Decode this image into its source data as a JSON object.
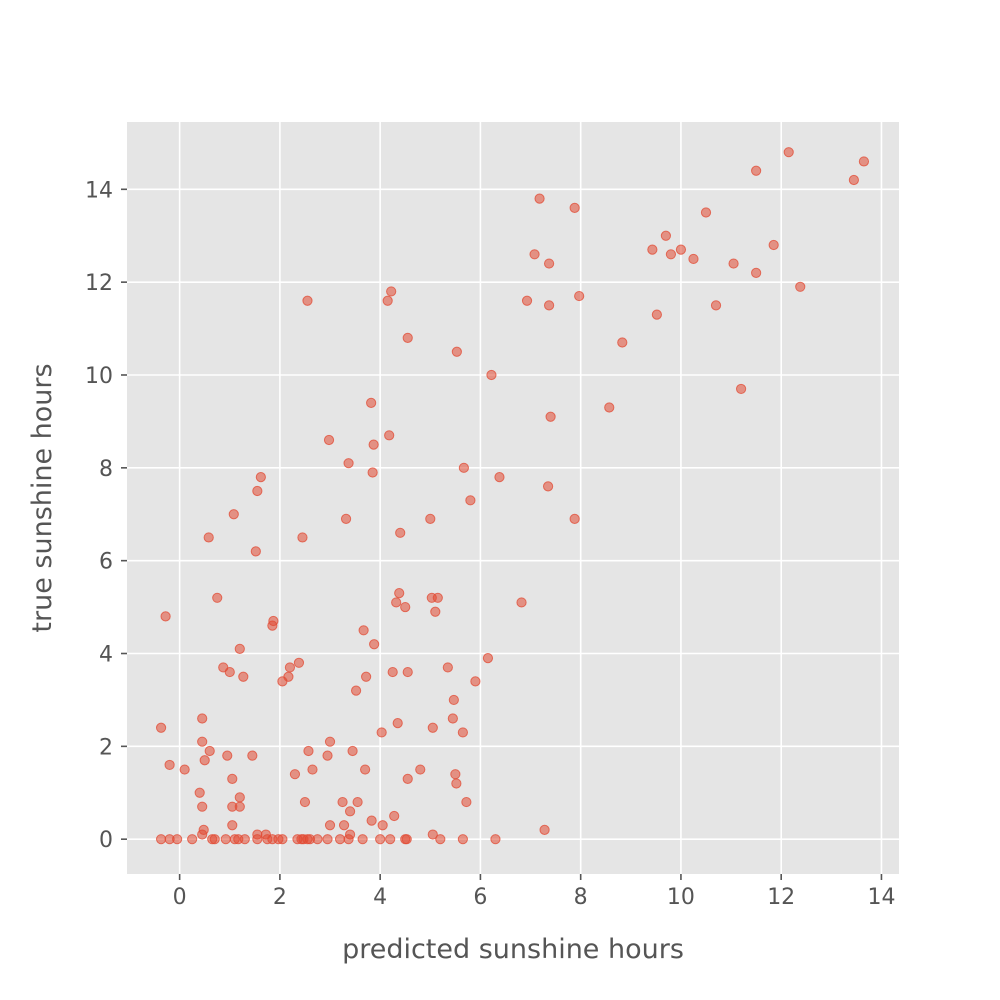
{
  "chart_data": {
    "type": "scatter",
    "title": "",
    "xlabel": "predicted sunshine hours",
    "ylabel": "true sunshine hours",
    "xlim": [
      -1.05,
      14.35
    ],
    "ylim": [
      -0.75,
      15.45
    ],
    "xticks": [
      0,
      2,
      4,
      6,
      8,
      10,
      12,
      14
    ],
    "yticks": [
      0,
      2,
      4,
      6,
      8,
      10,
      12,
      14
    ],
    "grid": true,
    "legend": "none",
    "colors": {
      "background": "#e5e5e5",
      "grid": "#ffffff",
      "point": "#e24a33",
      "text": "#555555"
    },
    "series": [
      {
        "points": [
          [
            -0.37,
            2.4
          ],
          [
            -0.28,
            4.8
          ],
          [
            -0.2,
            1.6
          ],
          [
            0.1,
            1.5
          ],
          [
            0.4,
            1.0
          ],
          [
            0.45,
            2.6
          ],
          [
            0.45,
            2.1
          ],
          [
            0.5,
            1.7
          ],
          [
            0.45,
            0.7
          ],
          [
            0.48,
            0.2
          ],
          [
            0.45,
            0.1
          ],
          [
            0.6,
            1.9
          ],
          [
            0.58,
            6.5
          ],
          [
            0.75,
            5.2
          ],
          [
            0.87,
            3.7
          ],
          [
            0.95,
            1.8
          ],
          [
            1.0,
            3.6
          ],
          [
            1.05,
            1.3
          ],
          [
            1.05,
            0.7
          ],
          [
            1.05,
            0.3
          ],
          [
            1.08,
            7.0
          ],
          [
            1.2,
            4.1
          ],
          [
            1.2,
            0.9
          ],
          [
            1.2,
            0.7
          ],
          [
            1.27,
            3.5
          ],
          [
            1.45,
            1.8
          ],
          [
            1.52,
            6.2
          ],
          [
            1.55,
            7.5
          ],
          [
            1.55,
            0.1
          ],
          [
            1.62,
            7.8
          ],
          [
            1.72,
            0.1
          ],
          [
            1.85,
            4.6
          ],
          [
            1.87,
            4.7
          ],
          [
            2.05,
            3.4
          ],
          [
            2.17,
            3.5
          ],
          [
            2.2,
            3.7
          ],
          [
            2.3,
            1.4
          ],
          [
            2.38,
            3.8
          ],
          [
            2.45,
            6.5
          ],
          [
            2.5,
            0.8
          ],
          [
            2.55,
            11.6
          ],
          [
            2.57,
            1.9
          ],
          [
            2.65,
            1.5
          ],
          [
            2.95,
            1.8
          ],
          [
            2.98,
            8.6
          ],
          [
            3.0,
            2.1
          ],
          [
            3.0,
            0.3
          ],
          [
            3.25,
            0.8
          ],
          [
            3.28,
            0.3
          ],
          [
            3.32,
            6.9
          ],
          [
            3.37,
            8.1
          ],
          [
            3.4,
            0.6
          ],
          [
            3.4,
            0.1
          ],
          [
            3.45,
            1.9
          ],
          [
            3.52,
            3.2
          ],
          [
            3.55,
            0.8
          ],
          [
            3.67,
            4.5
          ],
          [
            3.7,
            1.5
          ],
          [
            3.72,
            3.5
          ],
          [
            3.82,
            9.4
          ],
          [
            3.83,
            0.4
          ],
          [
            3.85,
            7.9
          ],
          [
            3.87,
            8.5
          ],
          [
            3.88,
            4.2
          ],
          [
            4.03,
            2.3
          ],
          [
            4.05,
            0.3
          ],
          [
            4.15,
            11.6
          ],
          [
            4.18,
            8.7
          ],
          [
            4.22,
            11.8
          ],
          [
            4.25,
            3.6
          ],
          [
            4.28,
            0.5
          ],
          [
            4.32,
            5.1
          ],
          [
            4.35,
            2.5
          ],
          [
            4.38,
            5.3
          ],
          [
            4.4,
            6.6
          ],
          [
            4.5,
            5.0
          ],
          [
            4.55,
            10.8
          ],
          [
            4.55,
            3.6
          ],
          [
            4.55,
            1.3
          ],
          [
            4.8,
            1.5
          ],
          [
            5.0,
            6.9
          ],
          [
            5.03,
            5.2
          ],
          [
            5.05,
            2.4
          ],
          [
            5.05,
            0.1
          ],
          [
            5.1,
            4.9
          ],
          [
            5.15,
            5.2
          ],
          [
            5.35,
            3.7
          ],
          [
            5.45,
            2.6
          ],
          [
            5.47,
            3.0
          ],
          [
            5.5,
            1.4
          ],
          [
            5.52,
            1.2
          ],
          [
            5.53,
            10.5
          ],
          [
            5.65,
            2.3
          ],
          [
            5.67,
            8.0
          ],
          [
            5.72,
            0.8
          ],
          [
            5.8,
            7.3
          ],
          [
            5.9,
            3.4
          ],
          [
            6.15,
            3.9
          ],
          [
            6.22,
            10.0
          ],
          [
            6.38,
            7.8
          ],
          [
            6.3,
            0.0
          ],
          [
            6.82,
            5.1
          ],
          [
            6.93,
            11.6
          ],
          [
            7.08,
            12.6
          ],
          [
            7.18,
            13.8
          ],
          [
            7.28,
            0.2
          ],
          [
            7.35,
            7.6
          ],
          [
            7.37,
            12.4
          ],
          [
            7.37,
            11.5
          ],
          [
            7.4,
            9.1
          ],
          [
            7.88,
            13.6
          ],
          [
            7.88,
            6.9
          ],
          [
            7.97,
            11.7
          ],
          [
            8.57,
            9.3
          ],
          [
            8.83,
            10.7
          ],
          [
            9.43,
            12.7
          ],
          [
            9.52,
            11.3
          ],
          [
            9.7,
            13.0
          ],
          [
            9.8,
            12.6
          ],
          [
            10.0,
            12.7
          ],
          [
            10.25,
            12.5
          ],
          [
            10.5,
            13.5
          ],
          [
            10.7,
            11.5
          ],
          [
            11.05,
            12.4
          ],
          [
            11.2,
            9.7
          ],
          [
            11.5,
            14.4
          ],
          [
            11.5,
            12.2
          ],
          [
            11.85,
            12.8
          ],
          [
            12.15,
            14.8
          ],
          [
            12.38,
            11.9
          ],
          [
            13.45,
            14.2
          ],
          [
            13.65,
            14.6
          ],
          [
            -0.37,
            0
          ],
          [
            -0.2,
            0
          ],
          [
            -0.05,
            0
          ],
          [
            0.25,
            0
          ],
          [
            0.65,
            0
          ],
          [
            0.7,
            0
          ],
          [
            0.92,
            0
          ],
          [
            1.1,
            0
          ],
          [
            1.17,
            0
          ],
          [
            1.3,
            0
          ],
          [
            1.55,
            0
          ],
          [
            1.75,
            0
          ],
          [
            1.85,
            0
          ],
          [
            1.97,
            0
          ],
          [
            2.05,
            0
          ],
          [
            2.35,
            0
          ],
          [
            2.43,
            0
          ],
          [
            2.47,
            0
          ],
          [
            2.55,
            0
          ],
          [
            2.6,
            0
          ],
          [
            2.75,
            0
          ],
          [
            2.95,
            0
          ],
          [
            3.2,
            0
          ],
          [
            3.37,
            0
          ],
          [
            3.65,
            0
          ],
          [
            4.0,
            0
          ],
          [
            4.2,
            0
          ],
          [
            4.5,
            0
          ],
          [
            4.53,
            0
          ],
          [
            5.2,
            0
          ],
          [
            5.65,
            0
          ]
        ]
      }
    ]
  }
}
